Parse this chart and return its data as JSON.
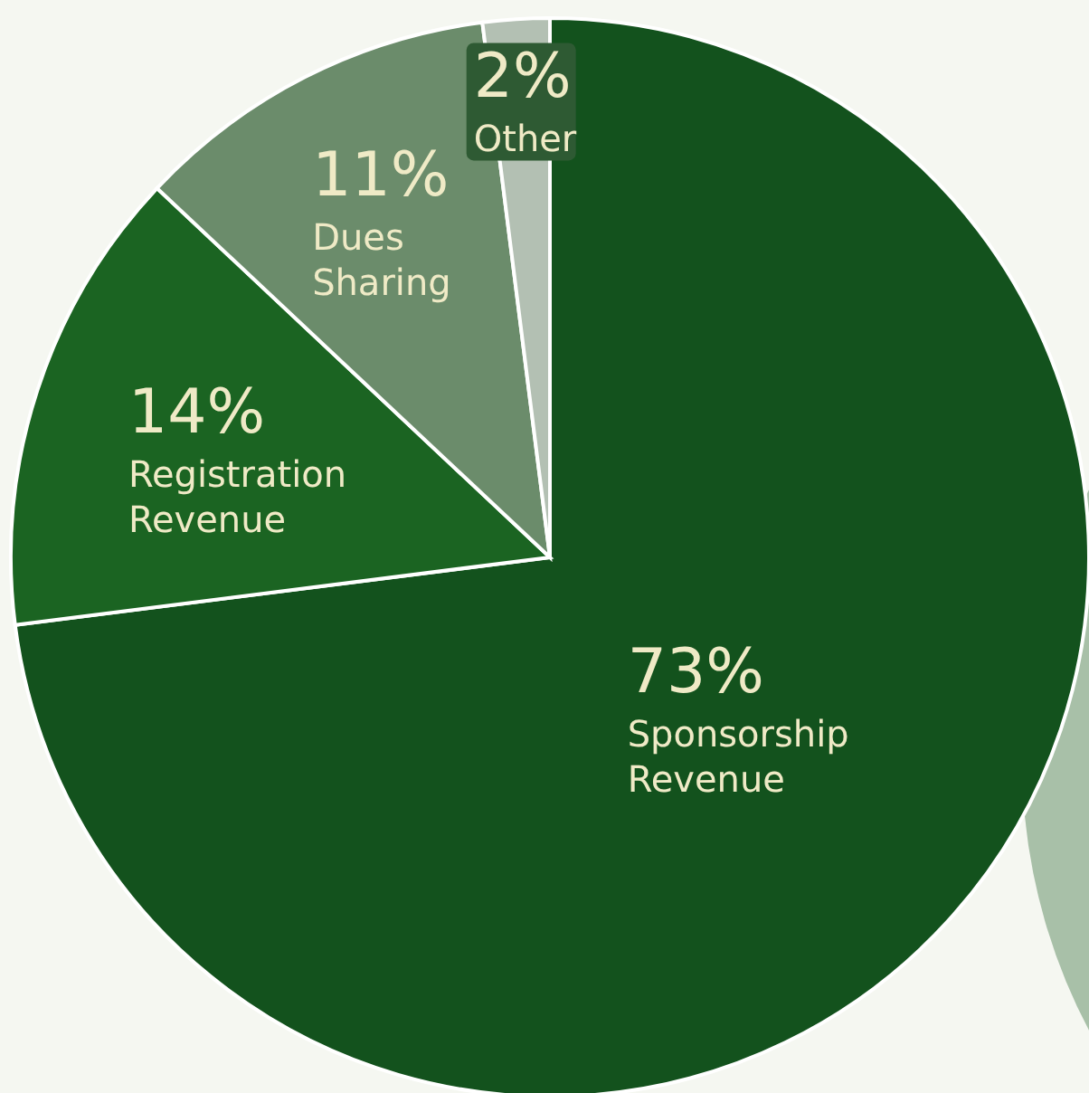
{
  "chart_data": {
    "type": "pie",
    "categories": [
      "Sponsorship Revenue",
      "Registration Revenue",
      "Dues Sharing",
      "Other"
    ],
    "values": [
      73,
      14,
      11,
      2
    ],
    "colors": [
      "#13521d",
      "#1b6422",
      "#6b8c6b",
      "#b3c0b3"
    ],
    "value_labels": [
      "73%",
      "14%",
      "11%",
      "2%"
    ]
  }
}
